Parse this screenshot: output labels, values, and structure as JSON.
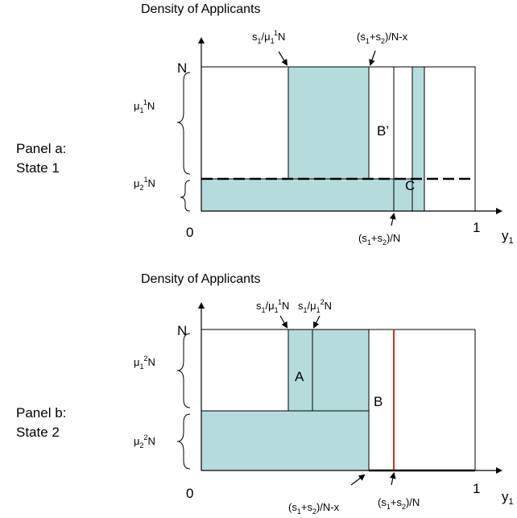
{
  "panel_a": {
    "density_label": "Density of Applicants",
    "panel_label_line1": "Panel a:",
    "panel_label_line2": "State 1",
    "y_top_label": "N",
    "origin_label": "0",
    "x_one_label": "1",
    "x_axis_label": {
      "base": "y",
      "sub": "1"
    },
    "mu_upper": {
      "base": "μ",
      "sub": "1",
      "sup": "1",
      "tail": "N"
    },
    "mu_lower": {
      "base": "μ",
      "sub": "2",
      "sup": "1",
      "tail": "N"
    },
    "arrow_label_left": {
      "p1": "s",
      "p1sub": "1",
      "p2": "/μ",
      "p2sub": "1",
      "p2sup": "1",
      "tail": "N"
    },
    "arrow_label_right": {
      "open": "(s",
      "s1sub": "1",
      "plus": "+s",
      "s2sub": "2",
      "tail": ")/N-x"
    },
    "arrow_label_bottom": {
      "open": "(s",
      "s1sub": "1",
      "plus": "+s",
      "s2sub": "2",
      "tail": ")/N"
    },
    "region_b_prime": "B’",
    "region_c": "C"
  },
  "panel_b": {
    "density_label": "Density of Applicants",
    "panel_label_line1": "Panel b:",
    "panel_label_line2": "State 2",
    "y_top_label": "N",
    "origin_label": "0",
    "x_one_label": "1",
    "x_axis_label": {
      "base": "y",
      "sub": "1"
    },
    "mu_upper": {
      "base": "μ",
      "sub": "1",
      "sup": "2",
      "tail": "N"
    },
    "mu_lower": {
      "base": "μ",
      "sub": "2",
      "sup": "2",
      "tail": "N"
    },
    "arrow_label_left": {
      "p1": "s",
      "p1sub": "1",
      "p2": "/μ",
      "p2sub": "1",
      "p2sup": "1",
      "tail": "N"
    },
    "arrow_label_mid": {
      "p1": "s",
      "p1sub": "1",
      "p2": "/μ",
      "p2sub": "1",
      "p2sup": "2",
      "tail": "N"
    },
    "arrow_label_bottom_left": {
      "open": "(s",
      "s1sub": "1",
      "plus": "+s",
      "s2sub": "2",
      "tail": ")/N-x"
    },
    "arrow_label_bottom_right": {
      "open": "(s",
      "s1sub": "1",
      "plus": "+s",
      "s2sub": "2",
      "tail": ")/N"
    },
    "region_a": "A",
    "region_b": "B"
  },
  "colors": {
    "fill": "#b4dcdc",
    "line": "#000000",
    "red_line": "#c0391b"
  }
}
